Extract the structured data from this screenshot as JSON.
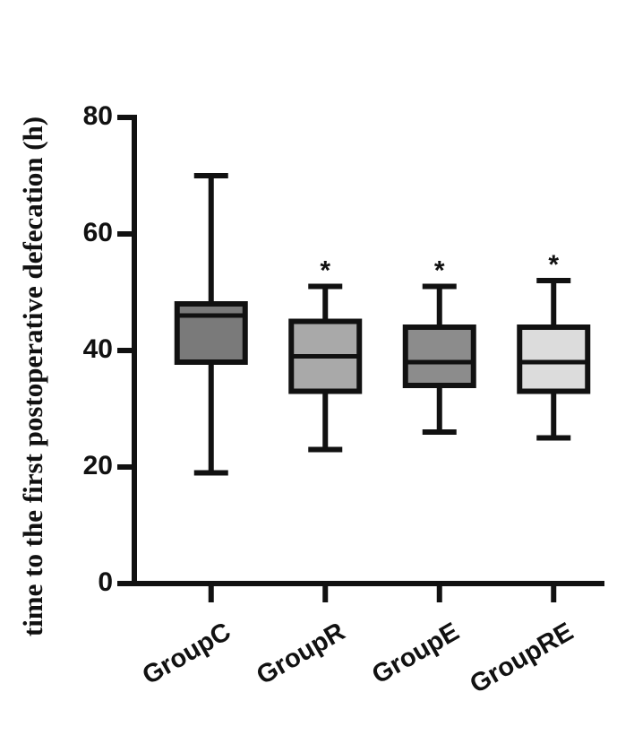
{
  "chart_data": {
    "type": "box",
    "ylabel": "time to the first postoperative defecation (h)",
    "categories": [
      "GroupC",
      "GroupR",
      "GroupE",
      "GroupRE"
    ],
    "series": [
      {
        "colors": [
          "#7a7a7a",
          "#a9a9a9",
          "#8c8c8c",
          "#dcdcdc"
        ],
        "min": [
          19,
          23,
          26,
          25
        ],
        "q1": [
          38,
          33,
          34,
          33
        ],
        "median": [
          46,
          39,
          38,
          38
        ],
        "q3": [
          48,
          45,
          44,
          44
        ],
        "max": [
          70,
          51,
          51,
          52
        ]
      }
    ],
    "significance": [
      null,
      "*",
      "*",
      "*"
    ],
    "ylim": [
      0,
      80
    ],
    "yticks": [
      0,
      20,
      40,
      60,
      80
    ]
  }
}
